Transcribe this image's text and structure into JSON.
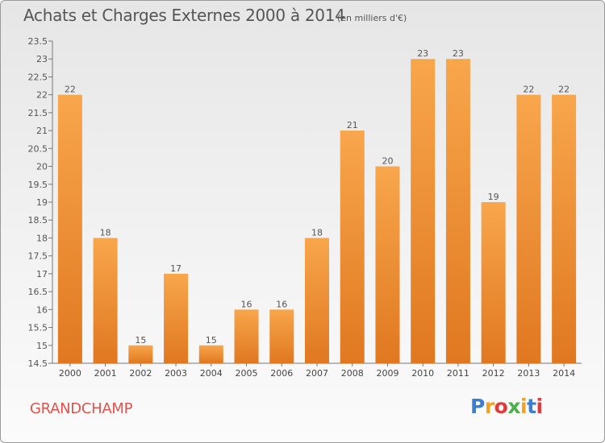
{
  "header": {
    "title": "Achats et Charges Externes 2000 à 2014",
    "unit_note": "(en milliers d'€)"
  },
  "footer": {
    "commune": "GRANDCHAMP",
    "logo_text": "Proxiti"
  },
  "colors": {
    "bar_light": "#f8a64c",
    "bar_dark": "#e07820",
    "commune_text": "#e0524a",
    "logo_letters": [
      "#3a7fd0",
      "#f2a21e",
      "#e23b3b",
      "#4bb04a",
      "#f2a21e",
      "#3a7fd0",
      "#e23b3b"
    ]
  },
  "chart_data": {
    "type": "bar",
    "categories": [
      "2000",
      "2001",
      "2002",
      "2003",
      "2004",
      "2005",
      "2006",
      "2007",
      "2008",
      "2009",
      "2010",
      "2011",
      "2012",
      "2013",
      "2014"
    ],
    "values": [
      22,
      18,
      15,
      17,
      15,
      16,
      16,
      18,
      21,
      20,
      23,
      23,
      19,
      22,
      22
    ],
    "data_labels": [
      "22",
      "18",
      "15",
      "17",
      "15",
      "16",
      "16",
      "18",
      "21",
      "20",
      "23",
      "23",
      "19",
      "22",
      "22"
    ],
    "y_ticks": [
      "14.5",
      "15",
      "15.5",
      "16",
      "16.5",
      "17",
      "17.5",
      "18",
      "18.5",
      "19",
      "19.5",
      "20",
      "20.5",
      "21",
      "21.5",
      "22",
      "22.5",
      "23",
      "23.5"
    ],
    "ylim": [
      14.5,
      23.5
    ],
    "grid": false,
    "legend": "none"
  }
}
